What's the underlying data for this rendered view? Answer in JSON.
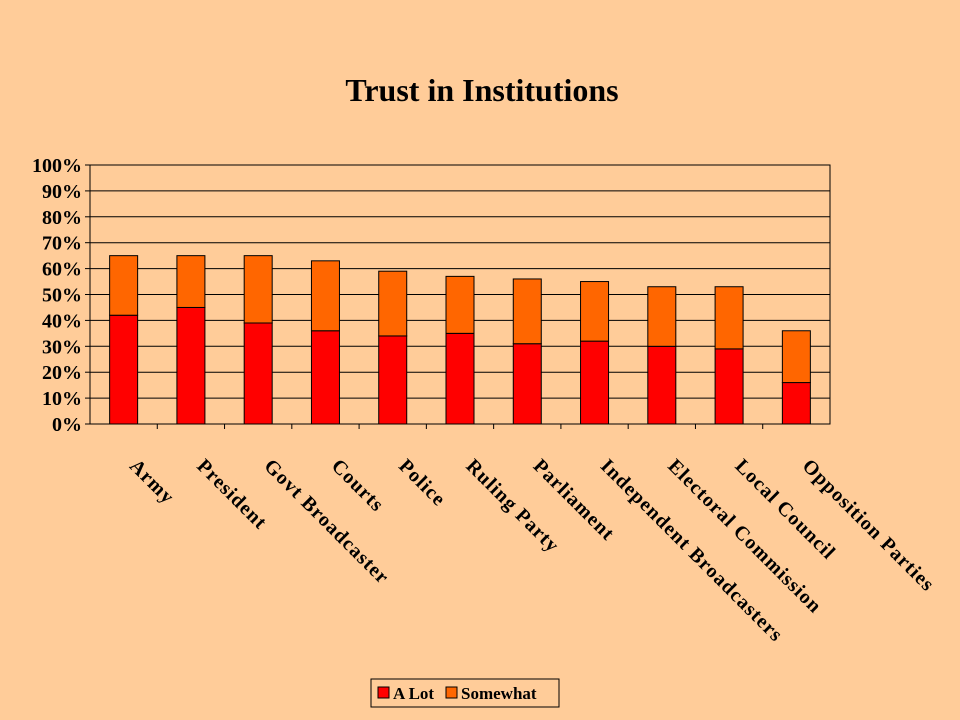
{
  "chart_data": {
    "type": "bar",
    "stacked": true,
    "title": "Trust in Institutions",
    "xlabel": "",
    "ylabel": "",
    "ylim": [
      0,
      100
    ],
    "yticks": [
      "0%",
      "10%",
      "20%",
      "30%",
      "40%",
      "50%",
      "60%",
      "70%",
      "80%",
      "90%",
      "100%"
    ],
    "grid": true,
    "legend_position": "bottom",
    "categories": [
      "Army",
      "President",
      "Govt Broadcaster",
      "Courts",
      "Police",
      "Ruling Party",
      "Parliament",
      "Independent Broadcasters",
      "Electoral Commission",
      "Local Council",
      "Opposition Parties"
    ],
    "series": [
      {
        "name": "A Lot",
        "color": "#FF0000",
        "values": [
          42,
          45,
          39,
          36,
          34,
          35,
          31,
          32,
          30,
          29,
          16
        ]
      },
      {
        "name": "Somewhat",
        "color": "#FF6600",
        "values": [
          23,
          20,
          26,
          27,
          25,
          22,
          25,
          23,
          23,
          24,
          20
        ]
      }
    ]
  }
}
